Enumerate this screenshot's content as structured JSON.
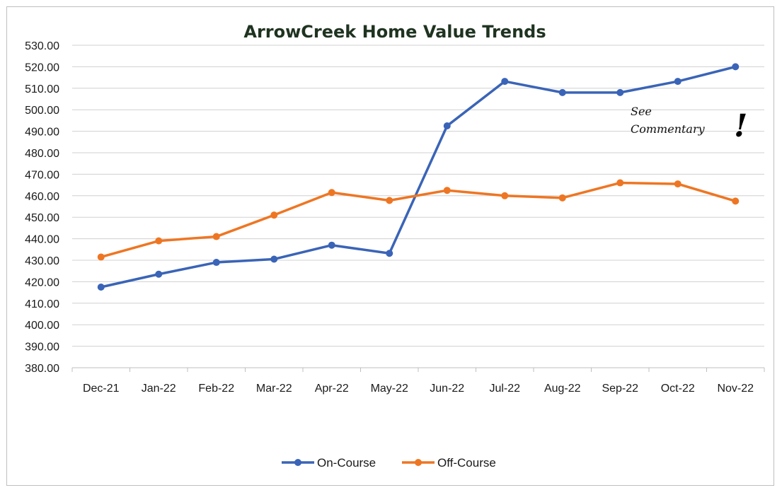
{
  "chart_data": {
    "type": "line",
    "title": "ArrowCreek Home Value Trends",
    "categories": [
      "Dec-21",
      "Jan-22",
      "Feb-22",
      "Mar-22",
      "Apr-22",
      "May-22",
      "Jun-22",
      "Jul-22",
      "Aug-22",
      "Sep-22",
      "Oct-22",
      "Nov-22"
    ],
    "series": [
      {
        "name": "On-Course",
        "color": "#3a64b7",
        "values": [
          417.5,
          423.5,
          429.0,
          430.5,
          437.0,
          433.2,
          492.5,
          513.2,
          508.0,
          508.0,
          513.2,
          520.0
        ]
      },
      {
        "name": "Off-Course",
        "color": "#ee7623",
        "values": [
          431.5,
          439.0,
          441.0,
          451.0,
          461.5,
          457.8,
          462.5,
          460.0,
          459.0,
          466.0,
          465.5,
          457.5
        ]
      }
    ],
    "y_ticks": [
      "380.00",
      "390.00",
      "400.00",
      "410.00",
      "420.00",
      "430.00",
      "440.00",
      "450.00",
      "460.00",
      "470.00",
      "480.00",
      "490.00",
      "500.00",
      "510.00",
      "520.00",
      "530.00"
    ],
    "ylim": [
      380,
      530
    ],
    "grid": true,
    "legend_position": "bottom",
    "annotation": {
      "line1": "See",
      "line2": "Commentary",
      "mark": "!"
    }
  }
}
